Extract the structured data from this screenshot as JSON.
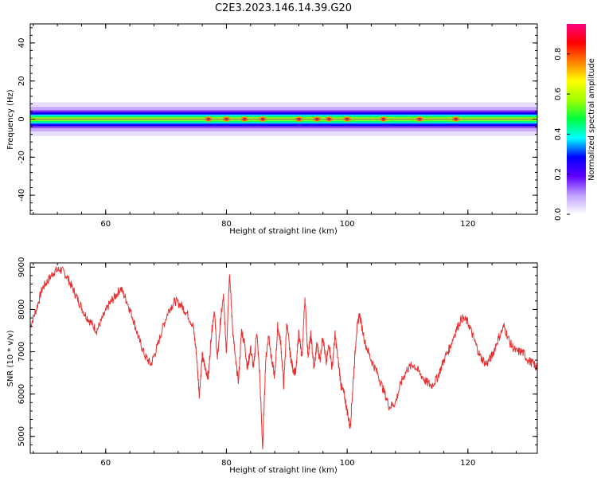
{
  "title": "C2E3.2023.146.14.39.G20",
  "chart_data": [
    {
      "type": "heatmap",
      "xlabel": "Height of straight line (km)",
      "ylabel": "Frequency (Hz)",
      "xlim": [
        47.5,
        131.5
      ],
      "ylim": [
        -50,
        50
      ],
      "xticks": [
        60,
        80,
        100,
        120
      ],
      "yticks": [
        -40,
        -20,
        0,
        20,
        40
      ],
      "colorbar": {
        "label": "Normalized spectral amplitude",
        "range": [
          0,
          0.95
        ],
        "ticks": [
          0.0,
          0.2,
          0.4,
          0.6,
          0.8
        ],
        "colormap": [
          "#ffffff",
          "#c0a0ff",
          "#6000ff",
          "#0000ff",
          "#00ffff",
          "#00ff40",
          "#a0ff00",
          "#ffff00",
          "#ff8000",
          "#ff0000",
          "#ff0080"
        ]
      },
      "band_center_hz": 0,
      "band_halfwidth_hz": 4,
      "hotspots_km": [
        77,
        80,
        83,
        86,
        92,
        95,
        97,
        100,
        106,
        112,
        118
      ],
      "grid": false
    },
    {
      "type": "line",
      "xlabel": "Height of straight line (km)",
      "ylabel": "SNR (10 * v/v)",
      "xlim": [
        47.5,
        131.5
      ],
      "ylim": [
        4600,
        9100
      ],
      "xticks": [
        60,
        80,
        100,
        120
      ],
      "yticks": [
        5000,
        6000,
        7000,
        8000,
        9000
      ],
      "color": "#e83030",
      "grid": false,
      "series": [
        {
          "x": [
            47.5,
            48.5,
            49.5,
            50.5,
            51.5,
            52.5,
            53.5,
            54.5,
            55.5,
            56.5,
            57.5,
            58.5,
            59.5,
            60.5,
            61.5,
            62.5,
            63.5,
            64.5,
            65.5,
            66.5,
            67.5,
            68.5,
            69.5,
            70.5,
            71.5,
            72.5,
            73.5,
            74.5,
            75,
            75.5,
            76,
            76.5,
            77,
            77.5,
            78,
            78.5,
            79,
            79.5,
            80,
            80.5,
            81,
            81.5,
            82,
            82.5,
            83,
            83.5,
            84,
            84.5,
            85,
            85.5,
            86,
            86.5,
            87,
            87.5,
            88,
            88.5,
            89,
            89.5,
            90,
            90.5,
            91,
            91.5,
            92,
            92.5,
            93,
            93.5,
            94,
            94.5,
            95,
            95.5,
            96,
            96.5,
            97,
            97.5,
            98,
            98.5,
            99,
            99.5,
            100,
            100.5,
            101,
            101.5,
            102,
            103,
            104,
            105,
            106,
            107,
            108,
            109,
            110,
            111,
            112,
            113,
            114,
            115,
            116,
            117,
            118,
            119,
            120,
            121,
            122,
            123,
            124,
            125,
            126,
            127,
            128,
            129,
            130,
            131,
            131.5
          ],
          "y": [
            7600,
            8000,
            8500,
            8700,
            8900,
            8950,
            8800,
            8500,
            8200,
            7900,
            7700,
            7500,
            7800,
            8100,
            8300,
            8500,
            8200,
            7800,
            7300,
            6900,
            6700,
            7100,
            7600,
            8000,
            8200,
            8100,
            7900,
            7600,
            7000,
            6000,
            6900,
            6600,
            6400,
            7400,
            8000,
            6800,
            7700,
            8300,
            7000,
            8900,
            7600,
            6800,
            6300,
            7500,
            7200,
            6600,
            7100,
            6600,
            7500,
            6500,
            4700,
            6800,
            7400,
            6800,
            6400,
            7600,
            7200,
            6200,
            7700,
            7000,
            6600,
            6500,
            7500,
            6800,
            8300,
            6900,
            7400,
            6600,
            7200,
            6800,
            7400,
            6700,
            7200,
            6600,
            7400,
            6800,
            6200,
            6000,
            5600,
            5200,
            6300,
            7400,
            7900,
            7200,
            6800,
            6500,
            6100,
            5700,
            5800,
            6300,
            6600,
            6700,
            6500,
            6300,
            6200,
            6400,
            6800,
            7100,
            7500,
            7800,
            7700,
            7300,
            6900,
            6700,
            6900,
            7300,
            7600,
            7200,
            7000,
            7000,
            6800,
            6700,
            6600
          ]
        }
      ]
    }
  ]
}
